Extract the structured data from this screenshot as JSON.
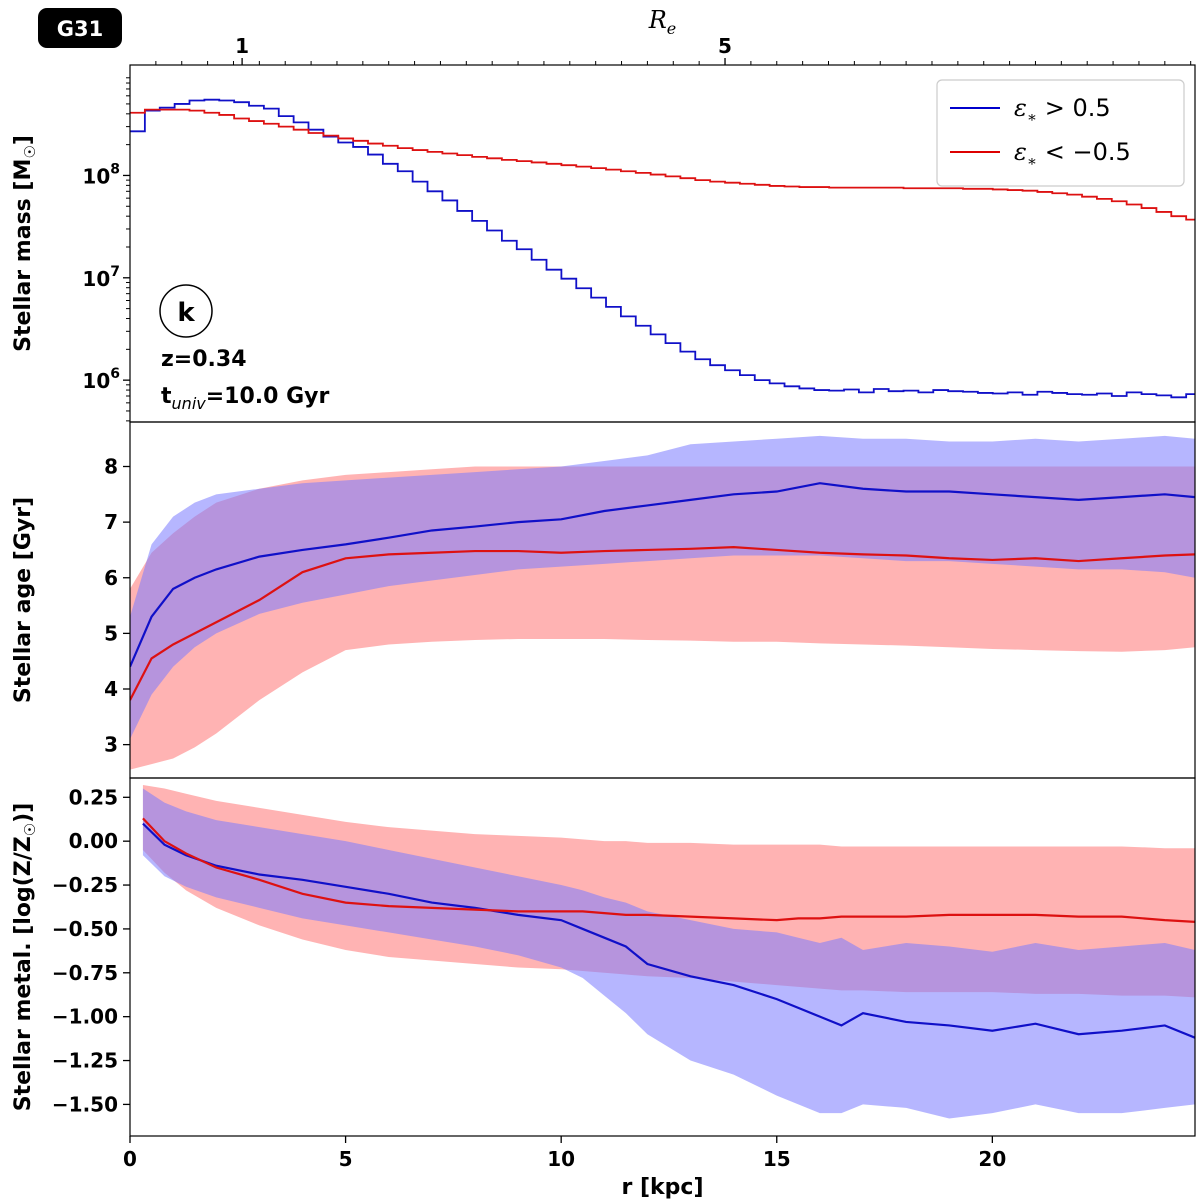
{
  "figure": {
    "galaxy_tag": "G31",
    "panel_label": "k",
    "redshift_text": "z=0.34",
    "tuniv_main": "t",
    "tuniv_sub": "univ",
    "tuniv_rest": "=10.0 Gyr",
    "legend": [
      {
        "symbol": "ε",
        "sub": "∗",
        "rest": " > 0.5",
        "color": "#0000cc"
      },
      {
        "symbol": "ε",
        "sub": "∗",
        "rest": " < −0.5",
        "color": "#dd0000"
      }
    ],
    "colors": {
      "prograde": "#1010c8",
      "retrograde": "#dd1111",
      "prograde_fill": "#7a7aff",
      "retrograde_fill": "#ff8080",
      "overlap_fill": "#b85ca8"
    }
  },
  "chart_data": [
    {
      "type": "line",
      "title": "",
      "xlabel": "r [kpc]",
      "xlim": [
        0,
        24.7
      ],
      "x_ticks": [
        0,
        5,
        10,
        15,
        20
      ],
      "x_tick_labels": [
        "0",
        "5",
        "10",
        "15",
        "20"
      ],
      "top_axis": {
        "label_main": "R",
        "label_sub": "e",
        "tick_positions_kpc": [
          2.6,
          13.8
        ],
        "tick_labels": [
          "1",
          "5"
        ]
      },
      "panels": [
        {
          "id": "mass",
          "ylabel": "Stellar mass [M☉]",
          "ylabel_main": "Stellar mass [M",
          "ylabel_sun": "☉",
          "ylabel_end": "]",
          "yscale": "log",
          "ylim": [
            390000,
            1200000000
          ],
          "y_ticks": [
            1000000,
            10000000,
            100000000
          ],
          "y_tick_base": "10",
          "y_tick_exponents": [
            "6",
            "7",
            "8"
          ],
          "bin_width": 0.345,
          "series": [
            {
              "name": "ε∗ > 0.5",
              "style": "step",
              "values": [
                270000000,
                430000000,
                460000000,
                500000000,
                540000000,
                550000000,
                540000000,
                520000000,
                480000000,
                450000000,
                380000000,
                330000000,
                280000000,
                240000000,
                210000000,
                190000000,
                160000000,
                130000000,
                110000000,
                87000000,
                70000000,
                57000000,
                45000000,
                36000000,
                29000000,
                23000000,
                19000000,
                15000000,
                12000000,
                9800000,
                7900000,
                6400000,
                5200000,
                4200000,
                3400000,
                2800000,
                2300000,
                1900000,
                1600000,
                1400000,
                1250000,
                1120000,
                1000000,
                930000,
                870000,
                830000,
                800000,
                790000,
                810000,
                760000,
                820000,
                780000,
                790000,
                760000,
                800000,
                780000,
                770000,
                750000,
                740000,
                760000,
                720000,
                770000,
                750000,
                730000,
                720000,
                740000,
                700000,
                760000,
                730000,
                710000,
                680000,
                730000
              ]
            },
            {
              "name": "ε∗ < −0.5",
              "style": "step",
              "values": [
                410000000,
                440000000,
                440000000,
                440000000,
                430000000,
                410000000,
                390000000,
                360000000,
                340000000,
                320000000,
                300000000,
                280000000,
                260000000,
                245000000,
                230000000,
                218000000,
                205000000,
                195000000,
                185000000,
                177000000,
                170000000,
                164000000,
                158000000,
                152000000,
                147000000,
                142000000,
                138000000,
                134000000,
                130000000,
                126000000,
                122000000,
                118000000,
                114000000,
                110000000,
                106000000,
                102000000,
                98000000,
                94000000,
                90000000,
                87000000,
                85000000,
                83000000,
                81000000,
                79000000,
                78000000,
                77000000,
                77000000,
                76000000,
                76000000,
                76000000,
                76000000,
                76000000,
                75000000,
                75000000,
                75000000,
                75000000,
                74000000,
                74000000,
                73000000,
                72000000,
                71000000,
                69000000,
                67000000,
                65000000,
                62000000,
                59000000,
                56000000,
                52000000,
                48000000,
                44000000,
                40000000,
                37000000
              ]
            }
          ]
        },
        {
          "id": "age",
          "ylabel": "Stellar age [Gyr]",
          "yscale": "linear",
          "ylim": [
            2.4,
            8.8
          ],
          "y_ticks": [
            3,
            4,
            5,
            6,
            7,
            8
          ],
          "y_tick_labels": [
            "3",
            "4",
            "5",
            "6",
            "7",
            "8"
          ],
          "x": [
            0,
            0.5,
            1,
            1.5,
            2,
            3,
            4,
            5,
            6,
            7,
            8,
            9,
            10,
            11,
            12,
            13,
            14,
            15,
            16,
            17,
            18,
            19,
            20,
            21,
            22,
            23,
            24,
            24.7
          ],
          "series": [
            {
              "name": "ε∗ > 0.5",
              "median": [
                4.4,
                5.3,
                5.8,
                6.0,
                6.15,
                6.38,
                6.5,
                6.6,
                6.72,
                6.85,
                6.92,
                7.0,
                7.05,
                7.2,
                7.3,
                7.4,
                7.5,
                7.55,
                7.7,
                7.6,
                7.55,
                7.55,
                7.5,
                7.45,
                7.4,
                7.45,
                7.5,
                7.45
              ],
              "lower": [
                3.1,
                3.9,
                4.4,
                4.75,
                5.0,
                5.35,
                5.55,
                5.7,
                5.85,
                5.95,
                6.05,
                6.15,
                6.2,
                6.25,
                6.3,
                6.35,
                6.4,
                6.4,
                6.4,
                6.35,
                6.3,
                6.3,
                6.25,
                6.2,
                6.15,
                6.15,
                6.1,
                6.0
              ],
              "upper": [
                5.3,
                6.6,
                7.1,
                7.35,
                7.5,
                7.6,
                7.7,
                7.75,
                7.8,
                7.85,
                7.9,
                7.95,
                8.0,
                8.1,
                8.2,
                8.4,
                8.45,
                8.5,
                8.55,
                8.5,
                8.5,
                8.45,
                8.45,
                8.5,
                8.45,
                8.5,
                8.55,
                8.5
              ]
            },
            {
              "name": "ε∗ < −0.5",
              "median": [
                3.8,
                4.55,
                4.8,
                5.0,
                5.2,
                5.6,
                6.1,
                6.35,
                6.42,
                6.45,
                6.48,
                6.48,
                6.45,
                6.48,
                6.5,
                6.52,
                6.55,
                6.5,
                6.45,
                6.42,
                6.4,
                6.35,
                6.32,
                6.35,
                6.3,
                6.35,
                6.4,
                6.42
              ],
              "lower": [
                2.55,
                2.65,
                2.75,
                2.95,
                3.2,
                3.8,
                4.3,
                4.7,
                4.8,
                4.85,
                4.88,
                4.9,
                4.9,
                4.9,
                4.88,
                4.87,
                4.85,
                4.85,
                4.82,
                4.8,
                4.78,
                4.75,
                4.72,
                4.7,
                4.68,
                4.67,
                4.7,
                4.75
              ],
              "upper": [
                5.8,
                6.45,
                6.8,
                7.1,
                7.35,
                7.6,
                7.75,
                7.85,
                7.9,
                7.95,
                8.0,
                8.0,
                8.0,
                8.0,
                8.0,
                8.0,
                8.0,
                8.0,
                8.0,
                8.0,
                8.0,
                8.0,
                8.0,
                8.0,
                8.0,
                8.0,
                8.0,
                8.0
              ]
            }
          ]
        },
        {
          "id": "metal",
          "ylabel": "Stellar metal. [log(Z/Z☉)]",
          "ylabel_main": "Stellar metal. [log(Z/Z",
          "ylabel_sun": "☉",
          "ylabel_end": ")]",
          "yscale": "linear",
          "ylim": [
            -1.68,
            0.36
          ],
          "y_ticks": [
            0.25,
            0.0,
            -0.25,
            -0.5,
            -0.75,
            -1.0,
            -1.25,
            -1.5
          ],
          "y_tick_labels": [
            "0.25",
            "0.00",
            "−0.25",
            "−0.50",
            "−0.75",
            "−1.00",
            "−1.25",
            "−1.50"
          ],
          "x": [
            0.3,
            0.8,
            1.3,
            2,
            3,
            4,
            5,
            6,
            7,
            8,
            9,
            10,
            10.5,
            11,
            11.5,
            12,
            13,
            14,
            15,
            15.5,
            16,
            16.5,
            17,
            18,
            19,
            20,
            21,
            22,
            23,
            24,
            24.7
          ],
          "series": [
            {
              "name": "ε∗ > 0.5",
              "median": [
                0.1,
                -0.02,
                -0.08,
                -0.14,
                -0.19,
                -0.22,
                -0.26,
                -0.3,
                -0.35,
                -0.38,
                -0.42,
                -0.45,
                -0.5,
                -0.55,
                -0.6,
                -0.7,
                -0.77,
                -0.82,
                -0.9,
                -0.95,
                -1.0,
                -1.05,
                -0.98,
                -1.03,
                -1.05,
                -1.08,
                -1.04,
                -1.1,
                -1.08,
                -1.05,
                -1.12
              ],
              "lower": [
                -0.08,
                -0.2,
                -0.26,
                -0.32,
                -0.38,
                -0.44,
                -0.48,
                -0.52,
                -0.56,
                -0.6,
                -0.65,
                -0.72,
                -0.78,
                -0.88,
                -0.98,
                -1.1,
                -1.25,
                -1.33,
                -1.45,
                -1.5,
                -1.55,
                -1.55,
                -1.5,
                -1.52,
                -1.58,
                -1.55,
                -1.5,
                -1.55,
                -1.55,
                -1.52,
                -1.5
              ],
              "upper": [
                0.3,
                0.22,
                0.17,
                0.12,
                0.08,
                0.04,
                0.0,
                -0.05,
                -0.1,
                -0.15,
                -0.2,
                -0.25,
                -0.28,
                -0.32,
                -0.35,
                -0.4,
                -0.45,
                -0.5,
                -0.52,
                -0.55,
                -0.58,
                -0.55,
                -0.62,
                -0.58,
                -0.6,
                -0.63,
                -0.58,
                -0.62,
                -0.6,
                -0.58,
                -0.62
              ]
            },
            {
              "name": "ε∗ < −0.5",
              "median": [
                0.13,
                0.0,
                -0.07,
                -0.15,
                -0.22,
                -0.3,
                -0.35,
                -0.37,
                -0.38,
                -0.39,
                -0.4,
                -0.4,
                -0.4,
                -0.41,
                -0.42,
                -0.42,
                -0.43,
                -0.44,
                -0.45,
                -0.44,
                -0.44,
                -0.43,
                -0.43,
                -0.43,
                -0.42,
                -0.42,
                -0.42,
                -0.43,
                -0.43,
                -0.45,
                -0.46
              ],
              "lower": [
                -0.05,
                -0.18,
                -0.28,
                -0.38,
                -0.48,
                -0.56,
                -0.62,
                -0.66,
                -0.68,
                -0.7,
                -0.72,
                -0.73,
                -0.74,
                -0.75,
                -0.76,
                -0.77,
                -0.78,
                -0.8,
                -0.82,
                -0.83,
                -0.84,
                -0.85,
                -0.85,
                -0.86,
                -0.86,
                -0.86,
                -0.87,
                -0.87,
                -0.88,
                -0.88,
                -0.89
              ],
              "upper": [
                0.32,
                0.3,
                0.27,
                0.23,
                0.19,
                0.15,
                0.11,
                0.08,
                0.06,
                0.04,
                0.03,
                0.02,
                0.01,
                0.0,
                0.0,
                -0.01,
                -0.01,
                -0.02,
                -0.02,
                -0.02,
                -0.02,
                -0.03,
                -0.03,
                -0.03,
                -0.03,
                -0.03,
                -0.03,
                -0.03,
                -0.03,
                -0.04,
                -0.04
              ]
            }
          ]
        }
      ]
    }
  ]
}
